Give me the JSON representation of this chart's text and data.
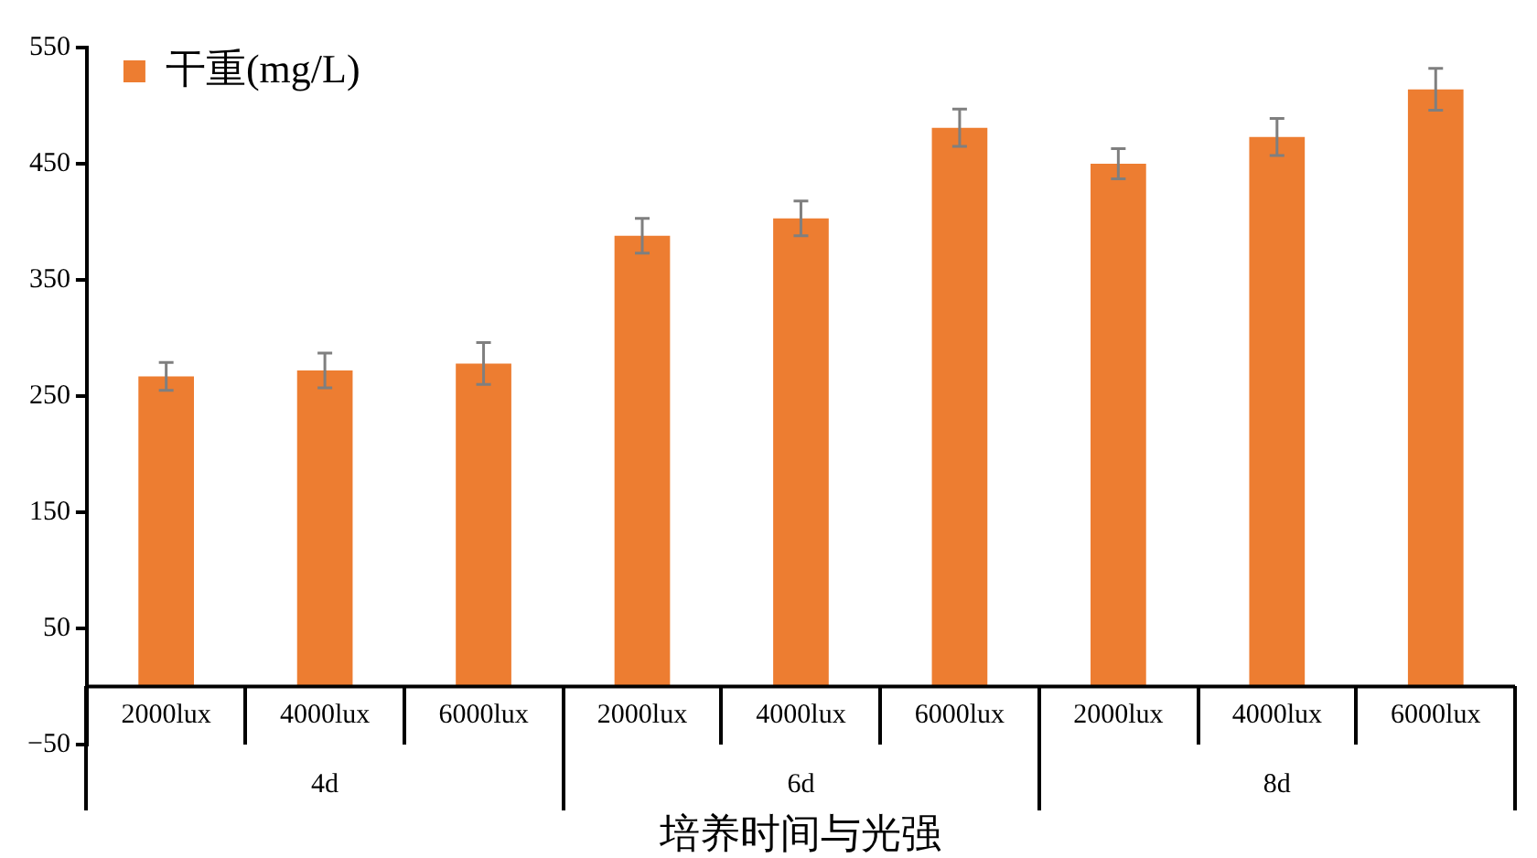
{
  "chart_data": {
    "type": "bar",
    "xlabel": "培养时间与光强",
    "categories": [
      "2000lux",
      "4000lux",
      "6000lux",
      "2000lux",
      "4000lux",
      "6000lux",
      "2000lux",
      "4000lux",
      "6000lux"
    ],
    "series": [
      {
        "name": "干重(mg/L)",
        "color": "#ed7d31",
        "values": [
          267,
          272,
          278,
          388,
          403,
          481,
          450,
          473,
          514
        ],
        "errors": [
          12,
          15,
          18,
          15,
          15,
          16,
          13,
          16,
          18
        ]
      }
    ],
    "annotations": [
      "4d",
      "6d",
      "8d"
    ],
    "ylim": [
      -50,
      550
    ],
    "yticks": [
      -50,
      50,
      150,
      250,
      350,
      450,
      550
    ],
    "grid": false,
    "legend": "top left"
  }
}
